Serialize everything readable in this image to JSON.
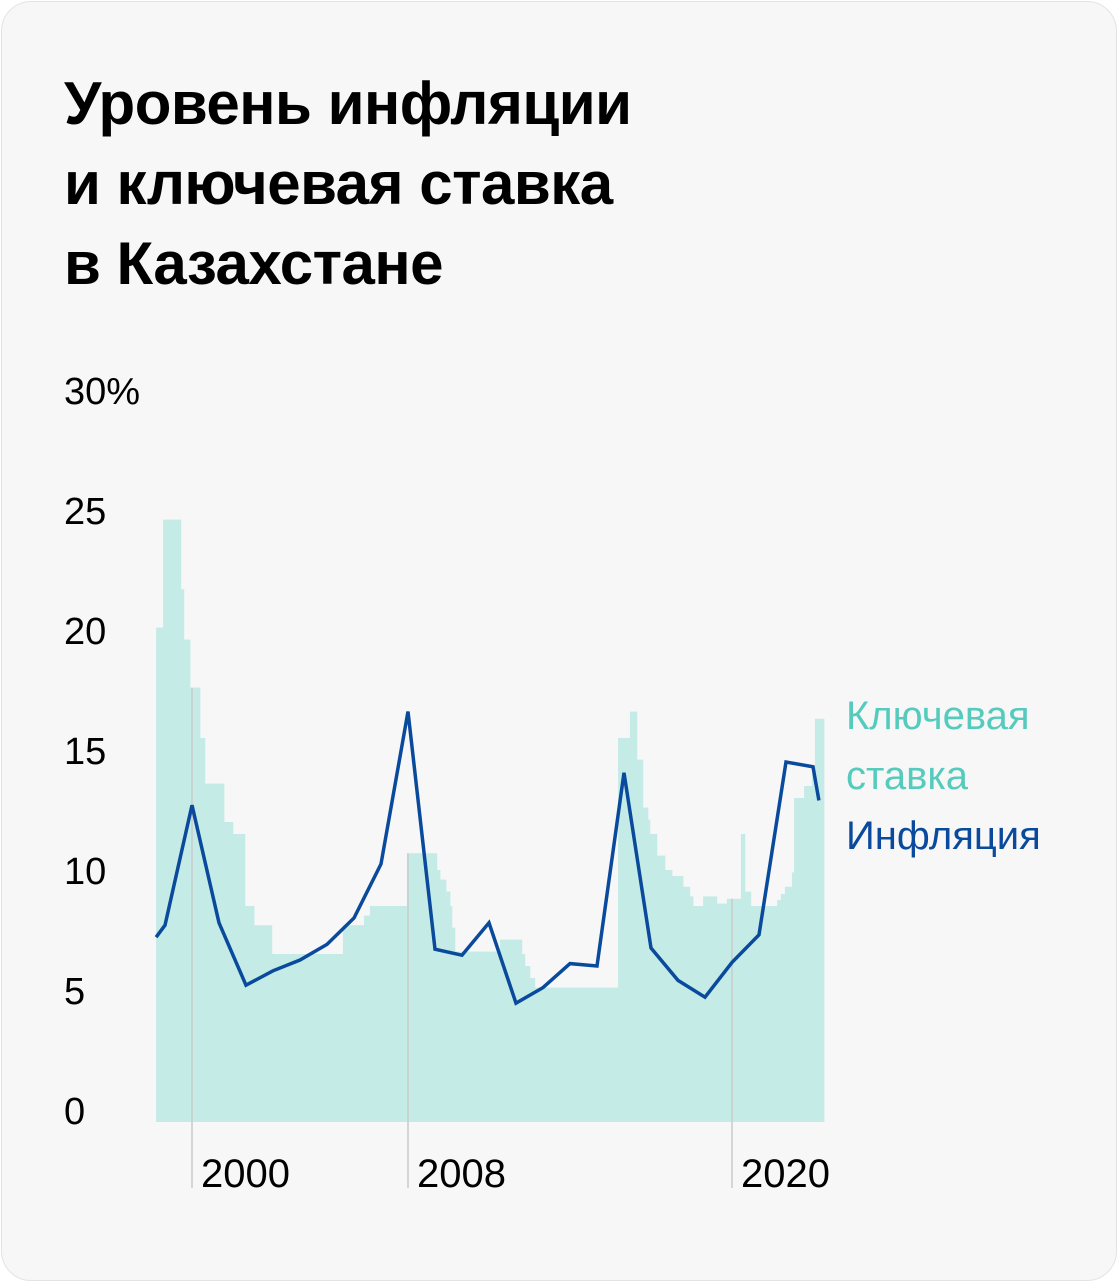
{
  "chart_data": {
    "type": "line",
    "title_lines": [
      "Уровень инфляции",
      "и ключевая ставка",
      "в Казахстане"
    ],
    "ylabel": "",
    "xlabel": "",
    "ylim": [
      0,
      30
    ],
    "xlim": [
      1998.67,
      2023.41
    ],
    "y_ticks": [
      {
        "value": 30,
        "label": "30%"
      },
      {
        "value": 25,
        "label": "25"
      },
      {
        "value": 20,
        "label": "20"
      },
      {
        "value": 15,
        "label": "15"
      },
      {
        "value": 10,
        "label": "10"
      },
      {
        "value": 5,
        "label": "5"
      },
      {
        "value": 0,
        "label": "0"
      }
    ],
    "x_ticks": [
      {
        "value": 2000,
        "label": "2000"
      },
      {
        "value": 2008,
        "label": "2008"
      },
      {
        "value": 2020,
        "label": "2020"
      }
    ],
    "grid": "vertical at x ticks",
    "legend_position": "right",
    "colors": {
      "key_rate_fill": "#c5ebe7",
      "key_rate_legend": "#55cbbd",
      "inflation": "#0a4a9c",
      "grid": "#c8cccc"
    },
    "series": [
      {
        "name": "Ключевая ставка",
        "legend_lines": [
          "Ключевая",
          "ставка"
        ],
        "type": "step-area",
        "end_year": 2023.41,
        "steps": [
          [
            1998.67,
            20.6
          ],
          [
            1998.93,
            25.1
          ],
          [
            1999.59,
            22.2
          ],
          [
            1999.7,
            20.1
          ],
          [
            1999.93,
            18.1
          ],
          [
            2000.3,
            16.0
          ],
          [
            2000.48,
            14.1
          ],
          [
            2001.19,
            12.5
          ],
          [
            2001.52,
            12.0
          ],
          [
            2001.96,
            9.0
          ],
          [
            2002.3,
            8.2
          ],
          [
            2002.96,
            7.0
          ],
          [
            2005.15,
            7.0
          ],
          [
            2005.59,
            8.2
          ],
          [
            2006.37,
            8.6
          ],
          [
            2006.59,
            9.0
          ],
          [
            2007.96,
            11.2
          ],
          [
            2009.07,
            10.5
          ],
          [
            2009.19,
            10.1
          ],
          [
            2009.41,
            9.6
          ],
          [
            2009.56,
            9.0
          ],
          [
            2009.63,
            8.1
          ],
          [
            2009.74,
            7.1
          ],
          [
            2011.41,
            7.6
          ],
          [
            2012.22,
            7.0
          ],
          [
            2012.33,
            6.5
          ],
          [
            2012.52,
            6.0
          ],
          [
            2012.7,
            5.6
          ],
          [
            2015.78,
            16.0
          ],
          [
            2016.22,
            17.1
          ],
          [
            2016.48,
            15.1
          ],
          [
            2016.7,
            13.1
          ],
          [
            2016.89,
            12.6
          ],
          [
            2016.96,
            12.0
          ],
          [
            2017.22,
            11.1
          ],
          [
            2017.52,
            10.5
          ],
          [
            2017.78,
            10.25
          ],
          [
            2018.19,
            9.8
          ],
          [
            2018.44,
            9.4
          ],
          [
            2018.56,
            9.0
          ],
          [
            2018.93,
            9.4
          ],
          [
            2019.44,
            9.1
          ],
          [
            2019.81,
            9.3
          ],
          [
            2020.33,
            12.0
          ],
          [
            2020.48,
            9.6
          ],
          [
            2020.7,
            9.0
          ],
          [
            2021.67,
            9.25
          ],
          [
            2021.81,
            9.5
          ],
          [
            2021.96,
            9.8
          ],
          [
            2022.22,
            10.4
          ],
          [
            2022.3,
            13.5
          ],
          [
            2022.67,
            14.0
          ],
          [
            2022.96,
            14.5
          ],
          [
            2023.07,
            16.8
          ]
        ]
      },
      {
        "name": "Инфляция",
        "legend_lines": [
          "Инфляция"
        ],
        "type": "line",
        "points": [
          [
            1998.67,
            7.7
          ],
          [
            1999.0,
            8.2
          ],
          [
            2000,
            13.2
          ],
          [
            2001,
            8.3
          ],
          [
            2002,
            5.7
          ],
          [
            2003,
            6.3
          ],
          [
            2004,
            6.75
          ],
          [
            2005,
            7.4
          ],
          [
            2006,
            8.5
          ],
          [
            2007,
            10.75
          ],
          [
            2008,
            17.1
          ],
          [
            2009,
            7.2
          ],
          [
            2010,
            6.95
          ],
          [
            2011,
            8.3
          ],
          [
            2012,
            4.95
          ],
          [
            2013,
            5.6
          ],
          [
            2014,
            6.6
          ],
          [
            2015,
            6.5
          ],
          [
            2016,
            14.55
          ],
          [
            2017,
            7.25
          ],
          [
            2018,
            5.9
          ],
          [
            2019,
            5.2
          ],
          [
            2020,
            6.65
          ],
          [
            2021,
            7.8
          ],
          [
            2022,
            15.0
          ],
          [
            2023,
            14.8
          ],
          [
            2023.22,
            13.4
          ]
        ]
      }
    ]
  }
}
